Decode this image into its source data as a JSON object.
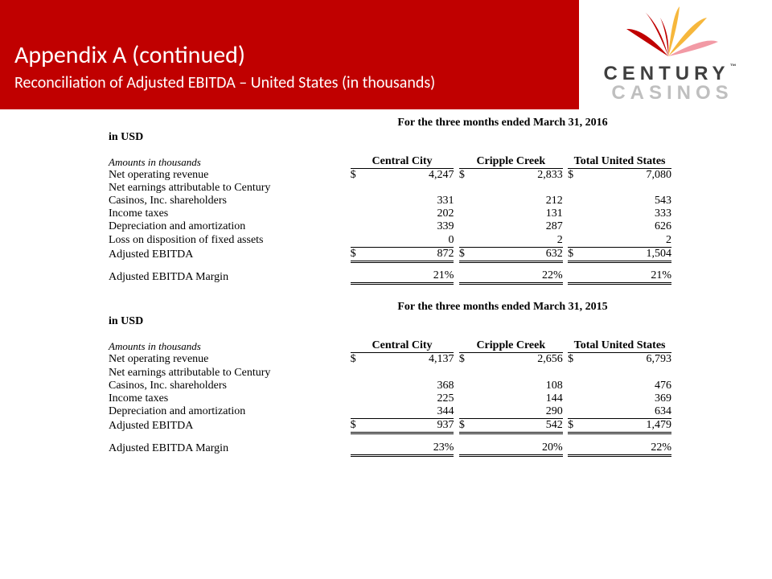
{
  "header": {
    "title": "Appendix A (continued)",
    "subtitle": "Reconciliation of Adjusted EBITDA – United States (in thousands)",
    "bar_color": "#c00000"
  },
  "logo": {
    "word1": "CENTURY",
    "word2": "CASINOS",
    "tm": "™",
    "burst_colors": [
      "#c00000",
      "#f6b73c",
      "#f29aa5"
    ]
  },
  "columns": {
    "c1": "Central City",
    "c2": "Cripple Creek",
    "c3": "Total United States"
  },
  "labels": {
    "in_usd": "in USD",
    "amounts": "Amounts in thousands",
    "net_rev": "Net operating revenue",
    "net_earn_a": "Net earnings attributable to Century",
    "net_earn_b": "Casinos, Inc. shareholders",
    "inc_tax": "Income taxes",
    "dep_amort": "Depreciation and amortization",
    "loss_disp": "Loss on disposition of fixed assets",
    "adj_ebitda": "Adjusted EBITDA",
    "adj_margin": "Adjusted EBITDA Margin",
    "currency": "$"
  },
  "tables": [
    {
      "period": "For the three months ended March 31, 2016",
      "has_loss_row": true,
      "rows": {
        "net_rev": {
          "c1": "4,247",
          "c2": "2,833",
          "c3": "7,080"
        },
        "net_earn": {
          "c1": "331",
          "c2": "212",
          "c3": "543"
        },
        "inc_tax": {
          "c1": "202",
          "c2": "131",
          "c3": "333"
        },
        "dep_amort": {
          "c1": "339",
          "c2": "287",
          "c3": "626"
        },
        "loss_disp": {
          "c1": "0",
          "c2": "2",
          "c3": "2"
        },
        "adj_ebitda": {
          "c1": "872",
          "c2": "632",
          "c3": "1,504"
        },
        "margin": {
          "c1": "21%",
          "c2": "22%",
          "c3": "21%"
        }
      }
    },
    {
      "period": "For the three months ended March 31, 2015",
      "has_loss_row": false,
      "rows": {
        "net_rev": {
          "c1": "4,137",
          "c2": "2,656",
          "c3": "6,793"
        },
        "net_earn": {
          "c1": "368",
          "c2": "108",
          "c3": "476"
        },
        "inc_tax": {
          "c1": "225",
          "c2": "144",
          "c3": "369"
        },
        "dep_amort": {
          "c1": "344",
          "c2": "290",
          "c3": "634"
        },
        "adj_ebitda": {
          "c1": "937",
          "c2": "542",
          "c3": "1,479"
        },
        "margin": {
          "c1": "23%",
          "c2": "20%",
          "c3": "22%"
        }
      }
    }
  ]
}
